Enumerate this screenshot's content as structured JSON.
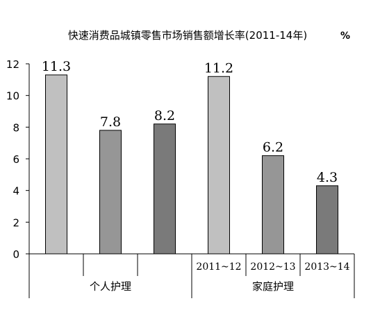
{
  "chart_data": {
    "type": "bar",
    "title": "快速消费品城镇零售市场销售额增长率(2011-14年)",
    "unit": "%",
    "xlabel": "",
    "ylabel": "",
    "ylim": [
      0,
      12
    ],
    "yticks": [
      "0",
      "2",
      "4",
      "6",
      "8",
      "10",
      "12"
    ],
    "grid": false,
    "legend": "none",
    "groups": [
      {
        "name": "个人护理",
        "categories": [
          "",
          "",
          ""
        ],
        "values": [
          11.3,
          7.8,
          8.2
        ],
        "labels": [
          "11.3",
          "7.8",
          "8.2"
        ]
      },
      {
        "name": "家庭护理",
        "categories": [
          "2011~12",
          "2012~13",
          "2013~14"
        ],
        "values": [
          11.2,
          6.2,
          4.3
        ],
        "labels": [
          "11.2",
          "6.2",
          "4.3"
        ]
      }
    ],
    "bar_colors": [
      "#c0c0c0",
      "#969696",
      "#7a7a7a"
    ]
  }
}
